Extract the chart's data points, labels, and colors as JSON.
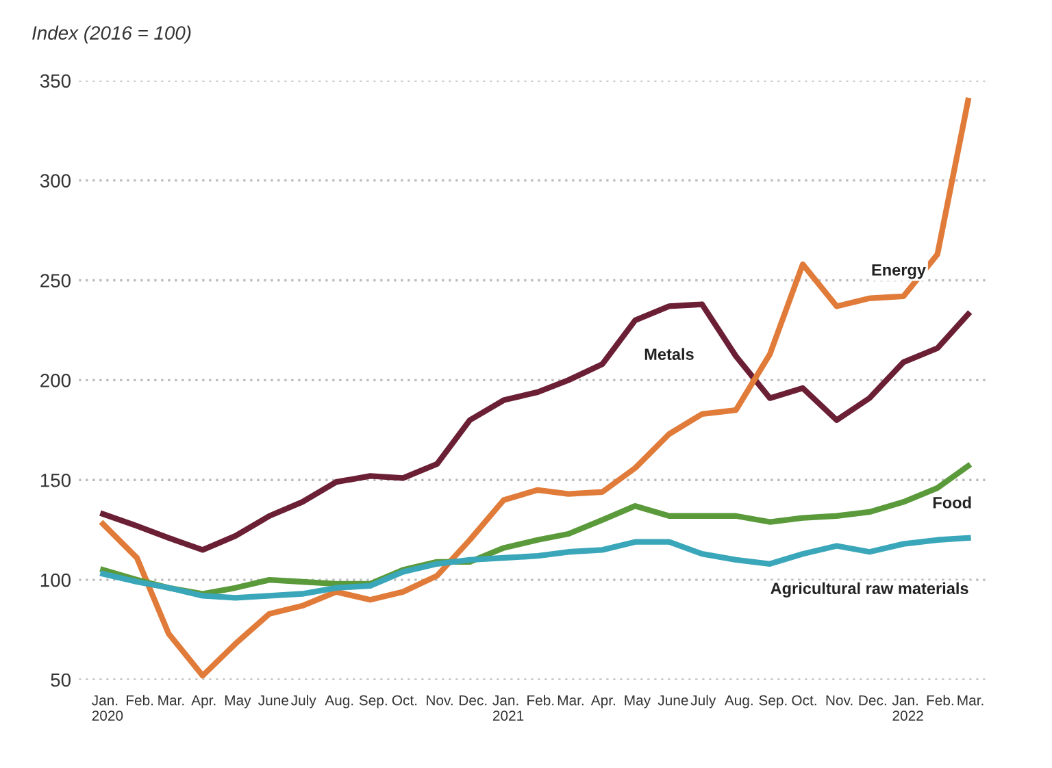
{
  "chart_data": {
    "type": "line",
    "ylabel": "Index (2016 = 100)",
    "x": [
      "2020-01",
      "2020-02",
      "2020-03",
      "2020-04",
      "2020-05",
      "2020-06",
      "2020-07",
      "2020-08",
      "2020-09",
      "2020-10",
      "2020-11",
      "2020-12",
      "2021-01",
      "2021-02",
      "2021-03",
      "2021-04",
      "2021-05",
      "2021-06",
      "2021-07",
      "2021-08",
      "2021-09",
      "2021-10",
      "2021-11",
      "2021-12",
      "2022-01",
      "2022-02",
      "2022-03"
    ],
    "series": [
      {
        "name": "Metals",
        "color": "#6b1f35",
        "values": [
          133,
          127,
          121,
          115,
          122,
          132,
          139,
          149,
          152,
          151,
          158,
          180,
          190,
          194,
          200,
          208,
          230,
          237,
          238,
          212,
          191,
          196,
          180,
          191,
          209,
          216,
          233
        ]
      },
      {
        "name": "Energy",
        "color": "#e07b39",
        "values": [
          128,
          111,
          73,
          52,
          68,
          83,
          87,
          94,
          90,
          94,
          102,
          120,
          140,
          145,
          143,
          144,
          156,
          173,
          183,
          185,
          213,
          258,
          237,
          241,
          242,
          263,
          340
        ]
      },
      {
        "name": "Food",
        "color": "#5a9a3a",
        "values": [
          105,
          100,
          96,
          93,
          96,
          100,
          99,
          98,
          98,
          105,
          109,
          109,
          116,
          120,
          123,
          130,
          137,
          132,
          132,
          132,
          129,
          131,
          132,
          134,
          139,
          146,
          157
        ]
      },
      {
        "name": "Agricultural raw materials",
        "color": "#3aa6b9",
        "values": [
          103,
          99,
          96,
          92,
          91,
          92,
          93,
          96,
          97,
          104,
          108,
          110,
          111,
          112,
          114,
          115,
          119,
          119,
          113,
          110,
          108,
          113,
          117,
          114,
          118,
          120,
          121
        ]
      }
    ],
    "xlim": [
      "2019-12-10",
      "2022-03-20"
    ],
    "xticks": [
      {
        "value": "2020-01",
        "label": "Jan.\n2020"
      },
      {
        "value": "2020-02",
        "label": "Feb."
      },
      {
        "value": "2020-03",
        "label": "Mar."
      },
      {
        "value": "2020-04",
        "label": "Apr."
      },
      {
        "value": "2020-05",
        "label": "May"
      },
      {
        "value": "2020-06",
        "label": "June"
      },
      {
        "value": "2020-07",
        "label": "July"
      },
      {
        "value": "2020-08",
        "label": "Aug."
      },
      {
        "value": "2020-09",
        "label": "Sep."
      },
      {
        "value": "2020-10",
        "label": "Oct."
      },
      {
        "value": "2020-11",
        "label": "Nov."
      },
      {
        "value": "2020-12",
        "label": "Dec."
      },
      {
        "value": "2021-01",
        "label": "Jan.\n2021"
      },
      {
        "value": "2021-02",
        "label": "Feb."
      },
      {
        "value": "2021-03",
        "label": "Mar."
      },
      {
        "value": "2021-04",
        "label": "Apr."
      },
      {
        "value": "2021-05",
        "label": "May"
      },
      {
        "value": "2021-06",
        "label": "June"
      },
      {
        "value": "2021-07",
        "label": "July"
      },
      {
        "value": "2021-08",
        "label": "Aug."
      },
      {
        "value": "2021-09",
        "label": "Sep."
      },
      {
        "value": "2021-10",
        "label": "Oct."
      },
      {
        "value": "2021-11",
        "label": "Nov."
      },
      {
        "value": "2021-12",
        "label": "Dec."
      },
      {
        "value": "2022-01",
        "label": "Jan.\n2022"
      },
      {
        "value": "2022-02",
        "label": "Feb."
      },
      {
        "value": "2022-03",
        "label": "Mar."
      }
    ],
    "ylim": [
      50,
      350
    ],
    "yticks": [
      50,
      100,
      150,
      200,
      250,
      300,
      350
    ],
    "grid": "y",
    "line_style": "solid"
  }
}
